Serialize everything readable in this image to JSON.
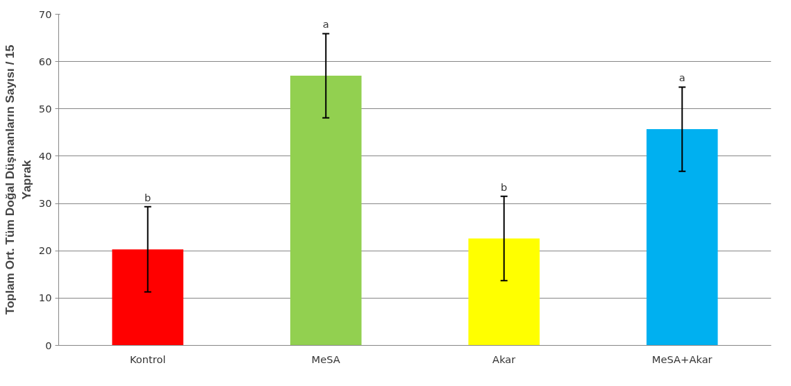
{
  "chart_data": {
    "type": "bar",
    "ylabel": "Toplam Ort. Tüm Doğal Düşmanların Sayısı / 15\nYaprak",
    "categories": [
      "Kontrol",
      "MeSA",
      "Akar",
      "MeSA+Akar"
    ],
    "values": [
      20.3,
      57.0,
      22.6,
      45.7
    ],
    "colors": [
      "#ff0000",
      "#92d050",
      "#ffff00",
      "#00b0f0"
    ],
    "errors": [
      9.0,
      8.9,
      8.9,
      8.9
    ],
    "ylim": [
      0,
      70
    ],
    "yticks": [
      0,
      10,
      20,
      30,
      40,
      50,
      60,
      70
    ],
    "grid": "y",
    "annotations": [
      "b",
      "a",
      "b",
      "a"
    ]
  }
}
